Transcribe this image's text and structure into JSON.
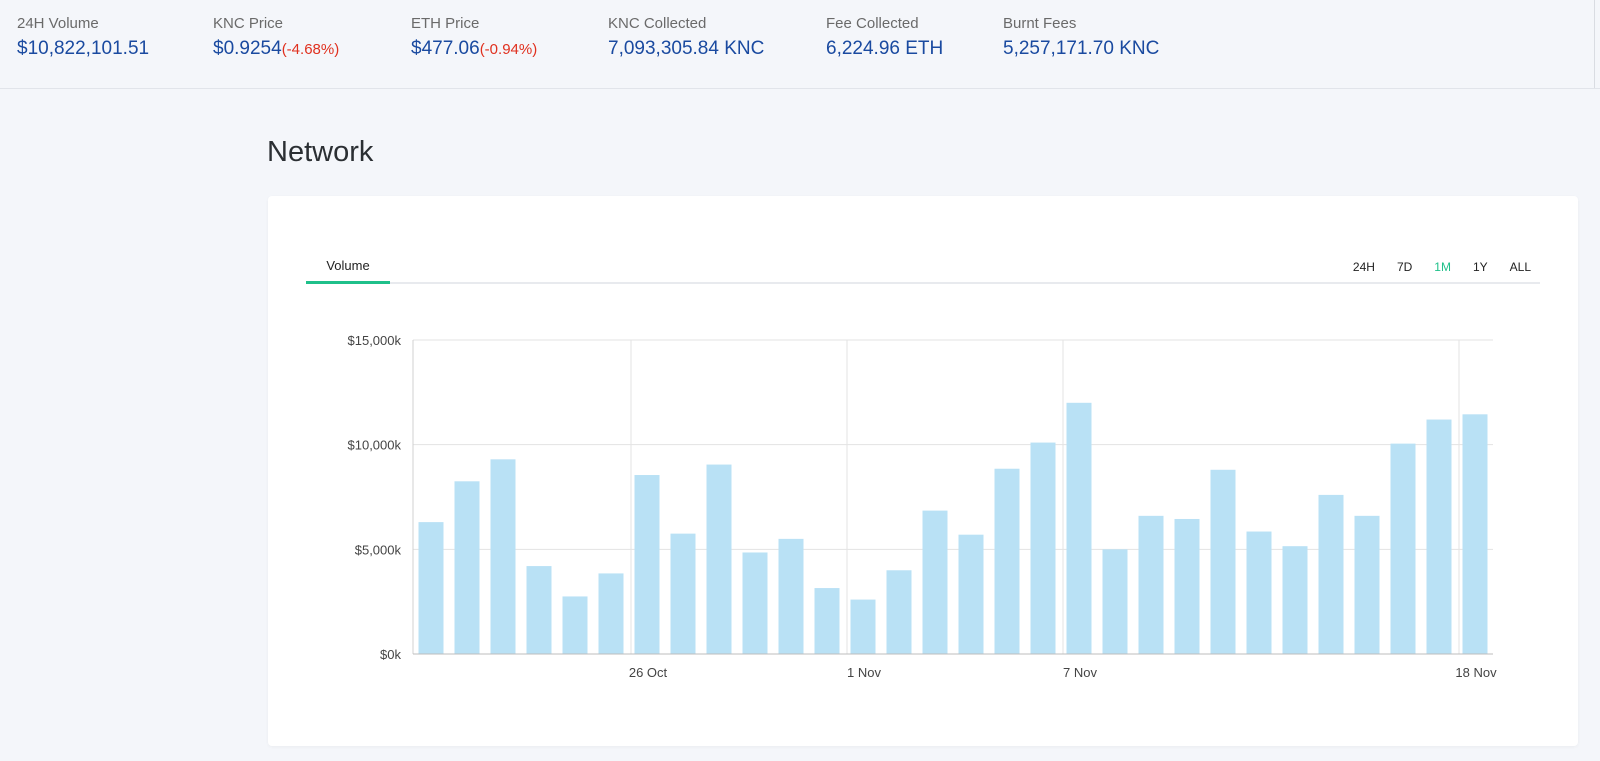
{
  "stats": [
    {
      "label": "24H Volume",
      "value": "$10,822,101.51",
      "change": ""
    },
    {
      "label": "KNC Price",
      "value": "$0.9254",
      "change": "(-4.68%)"
    },
    {
      "label": "ETH Price",
      "value": "$477.06",
      "change": "(-0.94%)"
    },
    {
      "label": "KNC Collected",
      "value": "7,093,305.84 KNC",
      "change": ""
    },
    {
      "label": "Fee Collected",
      "value": "6,224.96 ETH",
      "change": ""
    },
    {
      "label": "Burnt Fees",
      "value": "5,257,171.70 KNC",
      "change": ""
    }
  ],
  "page": {
    "title": "Network"
  },
  "tabs": [
    {
      "label": "Volume",
      "active": true
    }
  ],
  "ranges": [
    {
      "label": "24H",
      "active": false
    },
    {
      "label": "7D",
      "active": false
    },
    {
      "label": "1M",
      "active": true
    },
    {
      "label": "1Y",
      "active": false
    },
    {
      "label": "ALL",
      "active": false
    }
  ],
  "colors": {
    "accent": "#1fc08a",
    "bar": "#b9e1f5",
    "value": "#1a4aa0",
    "negative": "#e0301e"
  },
  "chart_data": {
    "type": "bar",
    "title": "",
    "xlabel": "",
    "ylabel": "",
    "ylim": [
      0,
      15000
    ],
    "y_ticks": [
      0,
      5000,
      10000,
      15000
    ],
    "y_tick_labels": [
      "$0k",
      "$5,000k",
      "$10,000k",
      "$15,000k"
    ],
    "x_ticks": [
      {
        "label": "26 Oct",
        "index": 6
      },
      {
        "label": "1 Nov",
        "index": 12
      },
      {
        "label": "7 Nov",
        "index": 18
      },
      {
        "label": "18 Nov",
        "index": 29
      }
    ],
    "grid": true,
    "values": [
      6300,
      8250,
      9300,
      4200,
      2750,
      3850,
      8550,
      5750,
      9050,
      4850,
      5500,
      3150,
      2600,
      4000,
      6850,
      5700,
      8850,
      10100,
      12000,
      5000,
      6600,
      6450,
      8800,
      5850,
      5150,
      7600,
      6600,
      10050,
      11200,
      11450
    ]
  }
}
